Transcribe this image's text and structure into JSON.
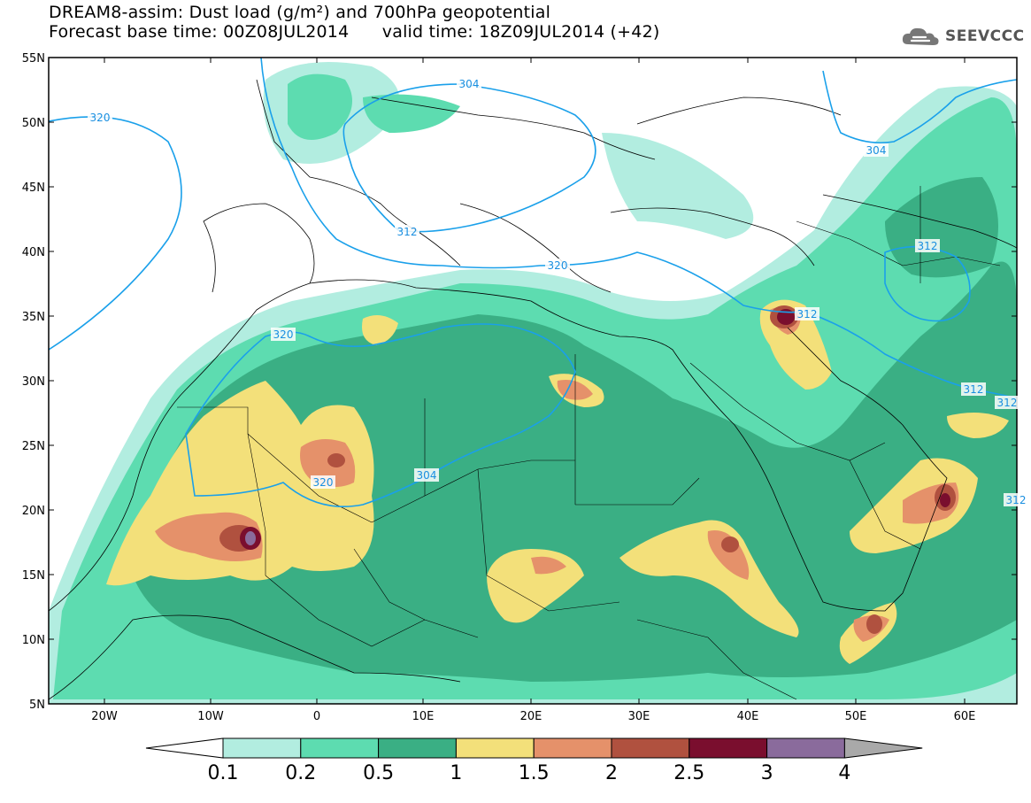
{
  "header": {
    "title_line1": "DREAM8-assim: Dust load (g/m²) and 700hPa geopotential",
    "title_line2": "Forecast base time: 00Z08JUL2014      valid time: 18Z09JUL2014 (+42)"
  },
  "logo": {
    "text": "SEEVCCC",
    "icon": "cloud-icon"
  },
  "map": {
    "lat_labels": [
      "55N",
      "50N",
      "45N",
      "40N",
      "35N",
      "30N",
      "25N",
      "20N",
      "15N",
      "10N",
      "5N"
    ],
    "lon_labels": [
      "20W",
      "10W",
      "0",
      "10E",
      "20E",
      "30E",
      "40E",
      "50E",
      "60E"
    ],
    "contour_labels": [
      "320",
      "304",
      "304",
      "312",
      "320",
      "320",
      "320",
      "304",
      "312",
      "312",
      "312",
      "312",
      "312"
    ]
  },
  "legend": {
    "thresholds": [
      "0.1",
      "0.2",
      "0.5",
      "1",
      "1.5",
      "2",
      "2.5",
      "3",
      "4"
    ],
    "colors": [
      "#b2ede0",
      "#5ddcb0",
      "#3aaf84",
      "#f3e07a",
      "#e5916a",
      "#b0513f",
      "#7a0e2e",
      "#8a6b9c",
      "#a9a9a9"
    ]
  }
}
